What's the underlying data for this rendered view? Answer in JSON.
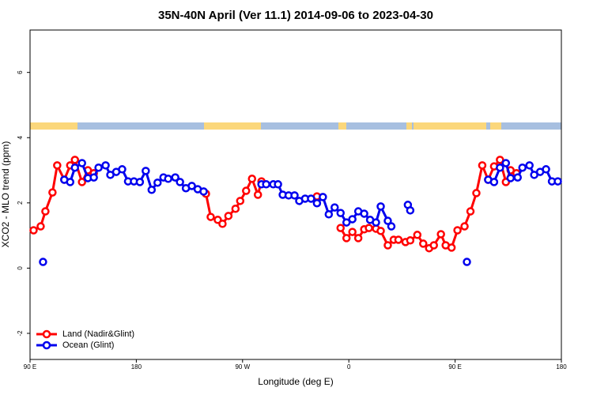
{
  "chart_data": {
    "type": "line",
    "title": "35N-40N April (Ver 11.1)   2014-09-06 to 2023-04-30",
    "x_label": "Longitude (deg E)",
    "y_label": "XCO2 - MLO trend (ppm)",
    "xlim": [
      90,
      540
    ],
    "ylim": [
      -2.8,
      7.3
    ],
    "xticks": [
      {
        "value": 90,
        "label": "90 E"
      },
      180,
      {
        "value": 270,
        "label": "90 W"
      },
      {
        "value": 360,
        "label": "0"
      },
      {
        "value": 450,
        "label": "90 E"
      },
      {
        "value": 540,
        "label": "180"
      }
    ],
    "yticks": [
      -2,
      0,
      2,
      4,
      6
    ],
    "legend": "bottom-left",
    "series": [
      {
        "name": "Land (Nadir&Glint)",
        "color": "#ff0000",
        "x": [
          93,
          99,
          103,
          109,
          113,
          119,
          124,
          128,
          134,
          139,
          144,
          null,
          239,
          243,
          249,
          253,
          258,
          264,
          268,
          273,
          278,
          283,
          286,
          null,
          333,
          null,
          353,
          358,
          363,
          368,
          373,
          377,
          383,
          387,
          393,
          398,
          402,
          408,
          412,
          418,
          423,
          428,
          432,
          438,
          442,
          447,
          452,
          458,
          463,
          468,
          473,
          478,
          483,
          488,
          493,
          497,
          502
        ],
        "values": [
          1.16,
          1.28,
          1.74,
          2.32,
          3.15,
          2.71,
          3.15,
          3.32,
          2.64,
          3.0,
          2.91,
          null,
          2.28,
          1.57,
          1.48,
          1.36,
          1.6,
          1.82,
          2.06,
          2.37,
          2.74,
          2.25,
          2.66,
          null,
          2.2,
          null,
          1.23,
          0.92,
          1.11,
          0.92,
          1.19,
          1.23,
          1.21,
          1.14,
          0.7,
          0.87,
          0.87,
          0.8,
          0.85,
          1.02,
          0.75,
          0.61,
          0.7,
          1.04,
          0.7,
          0.63,
          1.16,
          1.28,
          1.74,
          2.3,
          3.15,
          2.71,
          3.12,
          3.32,
          2.64,
          3.0,
          2.91
        ]
      },
      {
        "name": "Ocean (Glint)",
        "color": "#0000ee",
        "x": [
          101,
          null,
          119,
          124,
          128,
          134,
          139,
          144,
          148,
          154,
          158,
          163,
          168,
          173,
          178,
          183,
          188,
          193,
          198,
          203,
          207,
          213,
          217,
          222,
          227,
          232,
          237,
          null,
          286,
          290,
          296,
          300,
          304,
          309,
          314,
          318,
          323,
          328,
          333,
          338,
          343,
          348,
          353,
          358,
          363,
          368,
          373,
          378,
          383,
          387,
          393,
          396,
          null,
          410,
          412,
          null,
          460,
          null,
          478,
          483,
          488,
          493,
          497,
          503,
          507,
          513,
          517,
          522,
          527,
          532,
          537
        ],
        "values": [
          0.19,
          null,
          2.71,
          2.64,
          3.08,
          3.22,
          2.76,
          2.78,
          3.08,
          3.15,
          2.86,
          2.95,
          3.03,
          2.66,
          2.66,
          2.64,
          2.98,
          2.4,
          2.62,
          2.78,
          2.74,
          2.78,
          2.64,
          2.45,
          2.52,
          2.42,
          2.35,
          null,
          2.57,
          2.57,
          2.57,
          2.57,
          2.25,
          2.23,
          2.23,
          2.06,
          2.13,
          2.13,
          1.99,
          2.18,
          1.65,
          1.86,
          1.69,
          1.4,
          1.5,
          1.74,
          1.67,
          1.48,
          1.4,
          1.89,
          1.45,
          1.28,
          null,
          1.94,
          1.77,
          null,
          0.19,
          null,
          2.71,
          2.64,
          3.08,
          3.22,
          2.76,
          2.78,
          3.08,
          3.15,
          2.86,
          2.95,
          3.03,
          2.66,
          2.66
        ]
      }
    ]
  }
}
